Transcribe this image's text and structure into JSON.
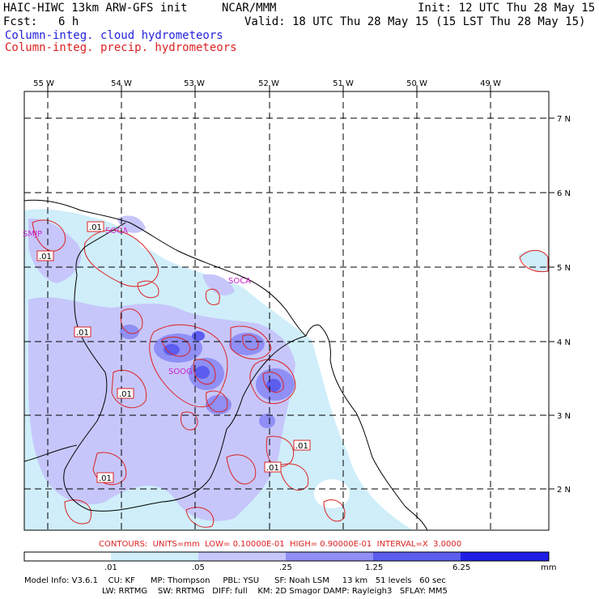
{
  "header": {
    "title_left": "HAIC-HIWC 13km ARW-GFS init",
    "source": "NCAR/MMM",
    "init": "Init: 12 UTC Thu 28 May 15",
    "fcst_label": "Fcst:",
    "fcst_value": "6 h",
    "valid": "Valid: 18 UTC Thu 28 May 15 (15 LST Thu 28 May 15)",
    "field_cloud": "Column-integ. cloud hydrometeors",
    "field_precip": "Column-integ. precip. hydrometeors"
  },
  "axes": {
    "lon_labels": [
      "55 W",
      "54 W",
      "53 W",
      "52 W",
      "51 W",
      "50 W",
      "49 W"
    ],
    "lat_labels": [
      "7 N",
      "6 N",
      "5 N",
      "4 N",
      "3 N",
      "2 N"
    ]
  },
  "stations": [
    "SMJP",
    "SOCA",
    "SOCA",
    "SOOG"
  ],
  "contour_labels": [
    ".01",
    ".01",
    ".01",
    ".01",
    ".01",
    ".01",
    ".01"
  ],
  "contours_note": "CONTOURS:  UNITS=mm  LOW= 0.10000E-01  HIGH= 0.90000E-01  INTERVAL=X  3.0000",
  "colorbar": {
    "ticks": [
      ".01",
      ".05",
      ".25",
      "1.25",
      "6.25"
    ],
    "unit": "mm",
    "colors": [
      "#ffffff",
      "#cfeefa",
      "#c6c6fb",
      "#8f8ff5",
      "#5c5cee",
      "#1e1ee6"
    ]
  },
  "model_info": {
    "line1": "Model Info: V3.6.1    CU: KF      MP: Thompson     PBL: YSU      SF: Noah LSM     13 km   51 levels   60 sec",
    "line2": "LW: RRTMG    SW: RRTMG   DIFF: full    KM: 2D Smagor DAMP: Rayleigh3   SFLAY: MM5"
  }
}
